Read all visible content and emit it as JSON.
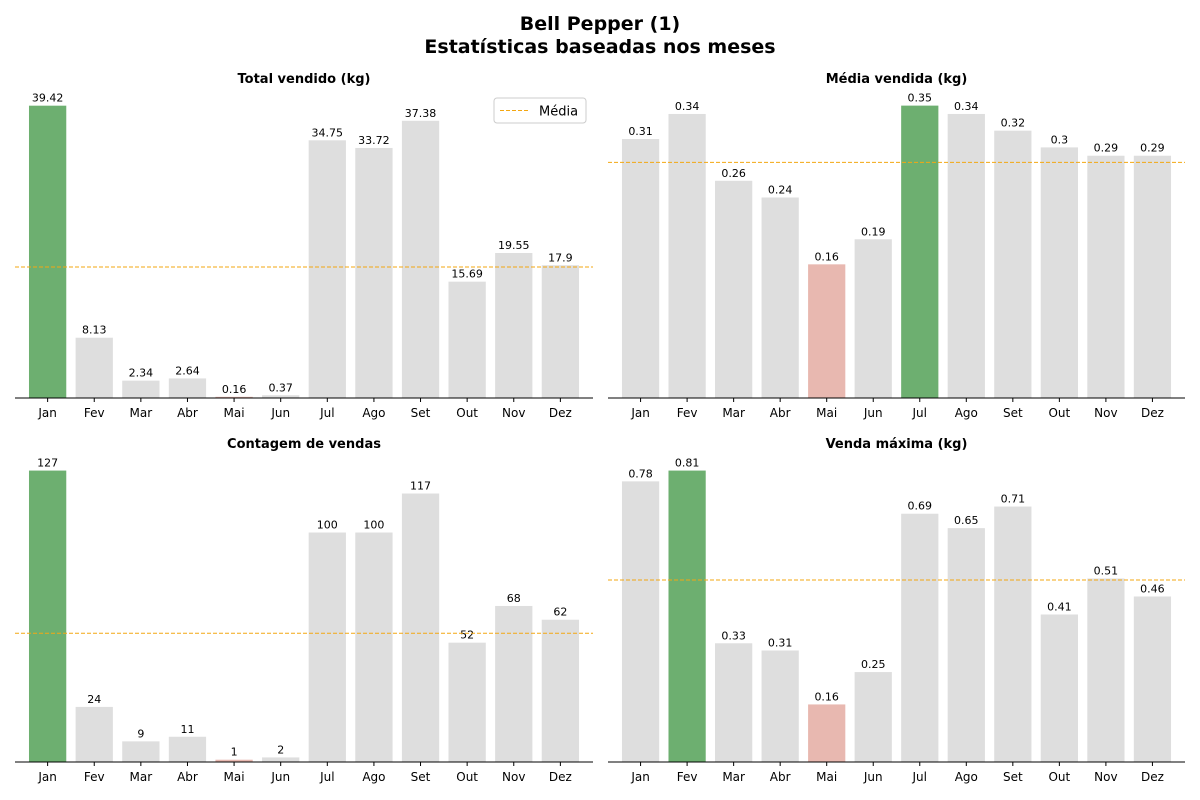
{
  "suptitle_line1": "Bell Pepper (1)",
  "suptitle_line2": "Estatísticas baseadas nos meses",
  "colors": {
    "default": "#dedede",
    "max": "#6daf70",
    "min": "#e8b8b0",
    "mean_line": "#f3a712"
  },
  "chart_data": [
    {
      "type": "bar",
      "title": "Total vendido (kg)",
      "categories": [
        "Jan",
        "Fev",
        "Mar",
        "Abr",
        "Mai",
        "Jun",
        "Jul",
        "Ago",
        "Set",
        "Out",
        "Nov",
        "Dez"
      ],
      "values": [
        39.42,
        8.13,
        2.34,
        2.64,
        0.16,
        0.37,
        34.75,
        33.72,
        37.38,
        15.69,
        19.55,
        17.9
      ],
      "value_labels": [
        "39.42",
        "8.13",
        "2.34",
        "2.64",
        "0.16",
        "0.37",
        "34.75",
        "33.72",
        "37.38",
        "15.69",
        "19.55",
        "17.9"
      ],
      "mean": 17.67,
      "ylim": [
        0,
        41.4
      ],
      "highlight_max": 0,
      "highlight_min": 4,
      "legend": {
        "label": "Média",
        "placement": "top-right"
      }
    },
    {
      "type": "bar",
      "title": "Média vendida (kg)",
      "categories": [
        "Jan",
        "Fev",
        "Mar",
        "Abr",
        "Mai",
        "Jun",
        "Jul",
        "Ago",
        "Set",
        "Out",
        "Nov",
        "Dez"
      ],
      "values": [
        0.31,
        0.34,
        0.26,
        0.24,
        0.16,
        0.19,
        0.35,
        0.34,
        0.32,
        0.3,
        0.29,
        0.29
      ],
      "value_labels": [
        "0.31",
        "0.34",
        "0.26",
        "0.24",
        "0.16",
        "0.19",
        "0.35",
        "0.34",
        "0.32",
        "0.3",
        "0.29",
        "0.29"
      ],
      "mean": 0.282,
      "ylim": [
        0,
        0.3675
      ],
      "highlight_max": 6,
      "highlight_min": 4
    },
    {
      "type": "bar",
      "title": "Contagem de vendas",
      "categories": [
        "Jan",
        "Fev",
        "Mar",
        "Abr",
        "Mai",
        "Jun",
        "Jul",
        "Ago",
        "Set",
        "Out",
        "Nov",
        "Dez"
      ],
      "values": [
        127,
        24,
        9,
        11,
        1,
        2,
        100,
        100,
        117,
        52,
        68,
        62
      ],
      "value_labels": [
        "127",
        "24",
        "9",
        "11",
        "1",
        "2",
        "100",
        "100",
        "117",
        "52",
        "68",
        "62"
      ],
      "mean": 56.1,
      "ylim": [
        0,
        133.35
      ],
      "highlight_max": 0,
      "highlight_min": 4
    },
    {
      "type": "bar",
      "title": "Venda máxima (kg)",
      "categories": [
        "Jan",
        "Fev",
        "Mar",
        "Abr",
        "Mai",
        "Jun",
        "Jul",
        "Ago",
        "Set",
        "Out",
        "Nov",
        "Dez"
      ],
      "values": [
        0.78,
        0.81,
        0.33,
        0.31,
        0.16,
        0.25,
        0.69,
        0.65,
        0.71,
        0.41,
        0.51,
        0.46
      ],
      "value_labels": [
        "0.78",
        "0.81",
        "0.33",
        "0.31",
        "0.16",
        "0.25",
        "0.69",
        "0.65",
        "0.71",
        "0.41",
        "0.51",
        "0.46"
      ],
      "mean": 0.506,
      "ylim": [
        0,
        0.8505
      ],
      "highlight_max": 1,
      "highlight_min": 4
    }
  ]
}
